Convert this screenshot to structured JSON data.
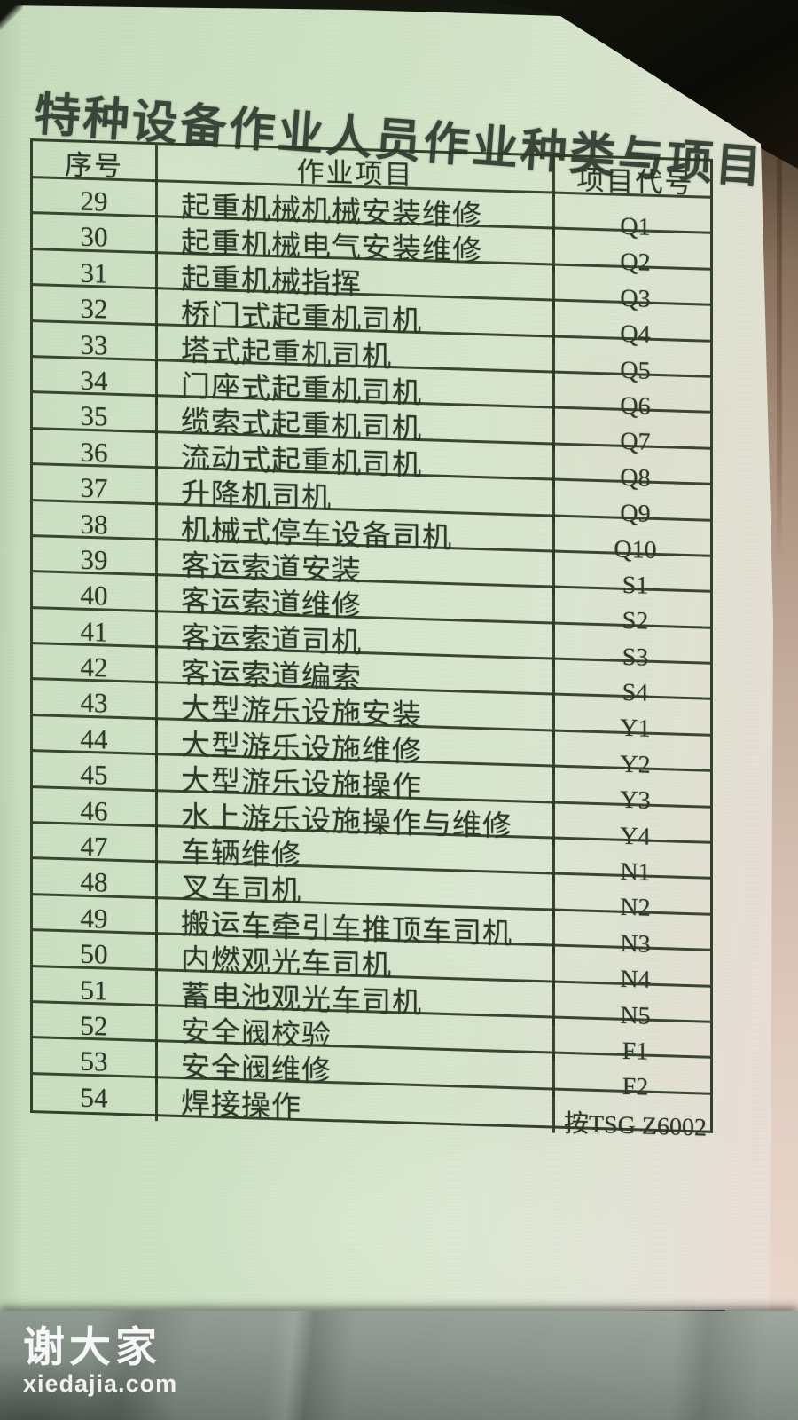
{
  "page": {
    "title": "特种设备作业人员作业种类与项目"
  },
  "table": {
    "columns": [
      "序号",
      "作业项目",
      "项目代号"
    ],
    "rows": [
      {
        "no": "29",
        "item": "起重机械机械安装维修",
        "code": "Q1"
      },
      {
        "no": "30",
        "item": "起重机械电气安装维修",
        "code": "Q2"
      },
      {
        "no": "31",
        "item": "起重机械指挥",
        "code": "Q3"
      },
      {
        "no": "32",
        "item": "桥门式起重机司机",
        "code": "Q4"
      },
      {
        "no": "33",
        "item": "塔式起重机司机",
        "code": "Q5"
      },
      {
        "no": "34",
        "item": "门座式起重机司机",
        "code": "Q6"
      },
      {
        "no": "35",
        "item": "缆索式起重机司机",
        "code": "Q7"
      },
      {
        "no": "36",
        "item": "流动式起重机司机",
        "code": "Q8"
      },
      {
        "no": "37",
        "item": "升降机司机",
        "code": "Q9"
      },
      {
        "no": "38",
        "item": "机械式停车设备司机",
        "code": "Q10"
      },
      {
        "no": "39",
        "item": "客运索道安装",
        "code": "S1"
      },
      {
        "no": "40",
        "item": "客运索道维修",
        "code": "S2"
      },
      {
        "no": "41",
        "item": "客运索道司机",
        "code": "S3"
      },
      {
        "no": "42",
        "item": "客运索道编索",
        "code": "S4"
      },
      {
        "no": "43",
        "item": "大型游乐设施安装",
        "code": "Y1"
      },
      {
        "no": "44",
        "item": "大型游乐设施维修",
        "code": "Y2"
      },
      {
        "no": "45",
        "item": "大型游乐设施操作",
        "code": "Y3"
      },
      {
        "no": "46",
        "item": "水上游乐设施操作与维修",
        "code": "Y4"
      },
      {
        "no": "47",
        "item": "车辆维修",
        "code": "N1"
      },
      {
        "no": "48",
        "item": "叉车司机",
        "code": "N2"
      },
      {
        "no": "49",
        "item": "搬运车牵引车推顶车司机",
        "code": "N3"
      },
      {
        "no": "50",
        "item": "内燃观光车司机",
        "code": "N4"
      },
      {
        "no": "51",
        "item": "蓄电池观光车司机",
        "code": "N5"
      },
      {
        "no": "52",
        "item": "安全阀校验",
        "code": "F1"
      },
      {
        "no": "53",
        "item": "安全阀维修",
        "code": "F2"
      },
      {
        "no": "54",
        "item": "焊接操作",
        "code": "按TSG Z6002"
      }
    ]
  },
  "watermark": {
    "name": "谢大家",
    "site": "xiedajia.com"
  },
  "colors": {
    "paper_green": "#cfe2c6",
    "paper_pink_edge": "#eddcd6",
    "table_line": "#2c3824",
    "ink": "#2d3829",
    "fabric_gray": "#89948b",
    "dark_edge": "#15180f",
    "book_edge_tan": "#c4ad9d",
    "watermark_white": "#ffffff"
  }
}
